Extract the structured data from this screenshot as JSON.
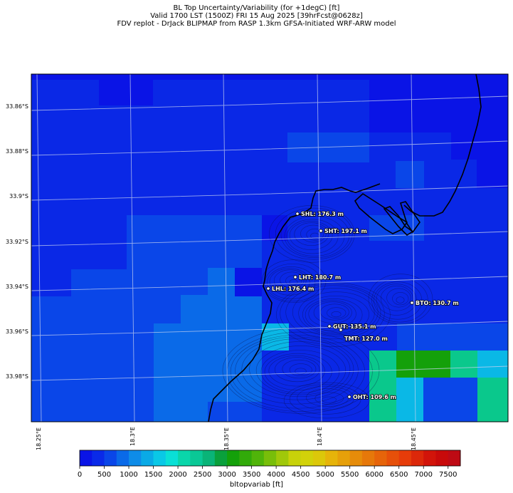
{
  "titles": {
    "line1": "BL Top Uncertainty/Variability (for +1degC) [ft]",
    "line2": "Valid 1700 LST (1500Z) FRI 15 Aug 2025 [39hrFcst@0628z]",
    "line3": "FDV replot - DrJack BLIPMAP from RASP 1.3km GFSA-Initiated WRF-ARW model"
  },
  "lat_labels": [
    "33.86°S",
    "33.88°S",
    "33.9°S",
    "33.92°S",
    "33.94°S",
    "33.96°S",
    "33.98°S"
  ],
  "lon_labels": [
    "18.25°E",
    "18.3°E",
    "18.35°E",
    "18.4°E",
    "18.45°E"
  ],
  "sites": [
    {
      "label": "SHL: 176.3 m"
    },
    {
      "label": "SHT: 197.1 m"
    },
    {
      "label": "LHT: 180.7 m"
    },
    {
      "label": "LHL: 176.4 m"
    },
    {
      "label": "BTO: 130.7 m"
    },
    {
      "label": "GUT: 135.1 m"
    },
    {
      "label": "TMT: 127.0 m"
    },
    {
      "label": "OHT: 109.6 m"
    }
  ],
  "colorbar": {
    "label": "bltopvariab [ft]",
    "ticks": [
      "0",
      "500",
      "1000",
      "1500",
      "2000",
      "2500",
      "3000",
      "3500",
      "4000",
      "4500",
      "5000",
      "5500",
      "6000",
      "6500",
      "7000",
      "7500"
    ],
    "colors": [
      "#0a14e6",
      "#0a2ae8",
      "#0a46e8",
      "#0a6ae8",
      "#0e8ce8",
      "#0aaae6",
      "#0ac8e6",
      "#0ae0d6",
      "#0ad6aa",
      "#0ac896",
      "#0ab478",
      "#0aa03c",
      "#14a00a",
      "#32aa0a",
      "#50b40a",
      "#78be0a",
      "#a0c80a",
      "#c8d20a",
      "#d2d20a",
      "#dcc80a",
      "#e6b40a",
      "#e6a00a",
      "#e68c0a",
      "#e6780a",
      "#e6640a",
      "#e6500a",
      "#e63c0a",
      "#dc280a",
      "#d2140a",
      "#c80a0a",
      "#be0a14"
    ],
    "max": 7750
  },
  "grid_colors": {
    "a": "#0a28e6",
    "b": "#0a46e8",
    "c": "#0a6ae8",
    "d": "#0e8ce8",
    "e": "#0ab8e6",
    "f": "#0ac88c",
    "g": "#14a00a",
    "h": "#0a14e6"
  },
  "grid": [
    "aaaaahhhhaaaaaaaaaaaaaaaaaaaaaaaaaaaaaaaaaaaaaaaaaaaaaaaaaaaaaaaaaaaaaaaaa",
    "aaaaaaahhhhhhhhhhhhhhhhhhhhhhhhhhhhhhhhhhhhhhhhhhhhhhhhhhhhhhhhhhhhhhhhhhhh",
    "aaaaaaaahhhhhhhhaaaaaaaaaaaaaaaaaaaaaaaaaaaaaaaaaaaaaaaahhhhhhhhhhhhhhhhhhh",
    "aaaaaaaaaaaaaaaaaaaaaaaaaaaaaaaaaaaaaaaaaaaaaaaaaaaaaaaaaaaaahhhhhhhhhhhhhh",
    "aaaaaaaaaaaaaaaaaaaaaaaaaaaaaaaaaaaaaaaaaaaaaaaaaaaaaaaaaaaaaaaaaaaaaaaaaa"
  ],
  "blocks": [
    {
      "r": [
        0,
        0,
        2,
        7
      ],
      "c": "a"
    },
    {
      "r": [
        3,
        0,
        5,
        7
      ],
      "c": "h"
    },
    {
      "r": [
        7,
        0,
        8,
        7
      ],
      "c": "a"
    }
  ]
}
